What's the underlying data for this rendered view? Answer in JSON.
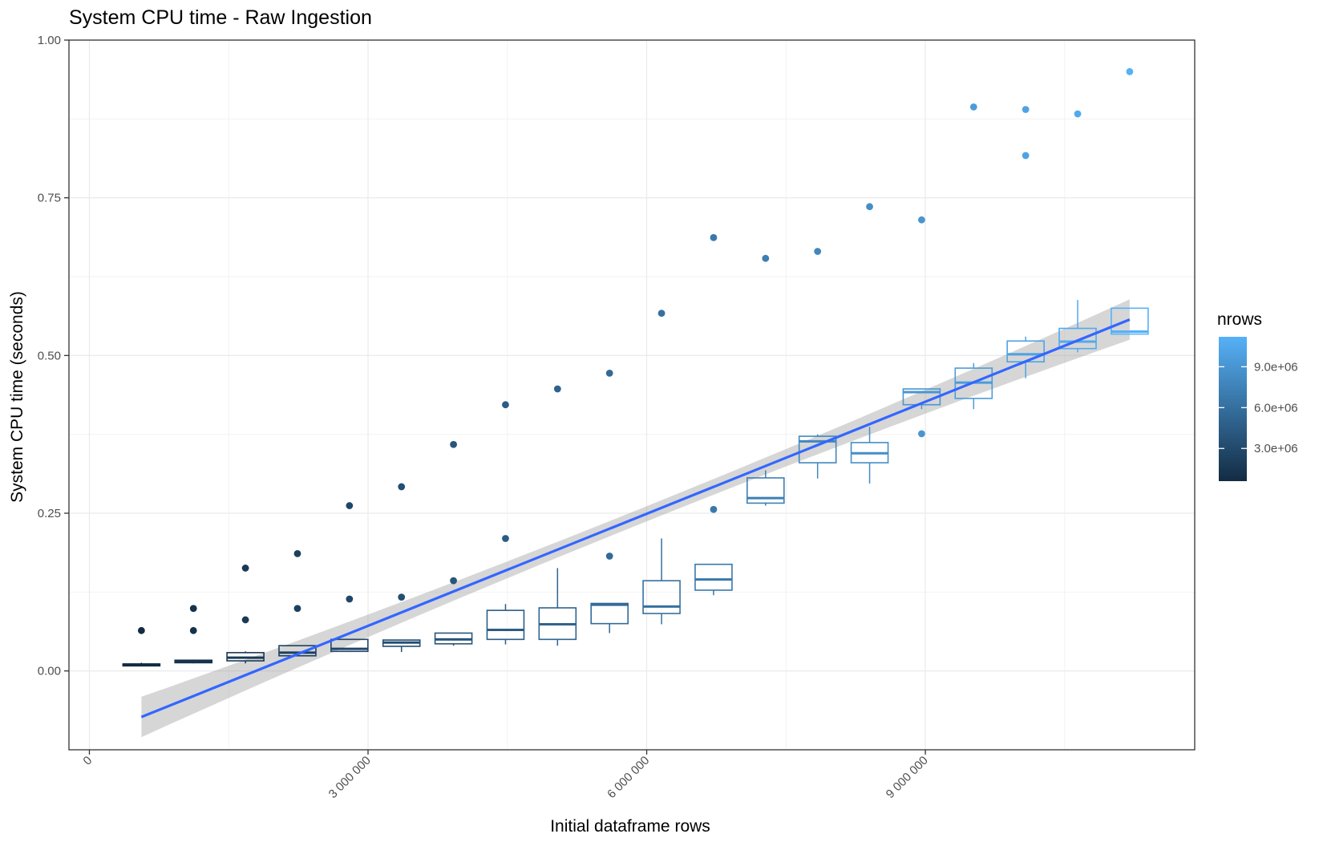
{
  "chart_data": {
    "type": "box",
    "title": "System CPU time - Raw Ingestion",
    "xlabel": "Initial dataframe rows",
    "ylabel": "System CPU time (seconds)",
    "xlim": [
      -220000,
      11900000
    ],
    "ylim": [
      -0.125,
      1.0
    ],
    "x_ticks": [
      0,
      3000000,
      6000000,
      9000000
    ],
    "x_tick_labels": [
      "0",
      "3 000 000",
      "6 000 000",
      "9 000 000"
    ],
    "y_ticks": [
      0.0,
      0.25,
      0.5,
      0.75,
      1.0
    ],
    "y_tick_labels": [
      "0.00",
      "0.25",
      "0.50",
      "0.75",
      "1.00"
    ],
    "grid": true,
    "legend": {
      "title": "nrows",
      "placement": "right",
      "type": "colorbar",
      "range": [
        600000,
        11200000
      ],
      "ticks": [
        3000000,
        6000000,
        9000000
      ],
      "tick_labels": [
        "3.0e+06",
        "6.0e+06",
        "9.0e+06"
      ],
      "color_low": "#132B43",
      "color_high": "#56B1F7"
    },
    "boxes": [
      {
        "x": 560000,
        "min": 0.008,
        "q1": 0.008,
        "median": 0.01,
        "q3": 0.011,
        "max": 0.013,
        "outliers": [
          0.064
        ]
      },
      {
        "x": 1120000,
        "min": 0.012,
        "q1": 0.013,
        "median": 0.015,
        "q3": 0.017,
        "max": 0.018,
        "outliers": [
          0.099,
          0.064
        ]
      },
      {
        "x": 1680000,
        "min": 0.012,
        "q1": 0.016,
        "median": 0.021,
        "q3": 0.029,
        "max": 0.031,
        "outliers": [
          0.163,
          0.081
        ]
      },
      {
        "x": 2240000,
        "min": 0.024,
        "q1": 0.024,
        "median": 0.029,
        "q3": 0.04,
        "max": 0.04,
        "outliers": [
          0.186,
          0.099
        ]
      },
      {
        "x": 2800000,
        "min": 0.03,
        "q1": 0.031,
        "median": 0.035,
        "q3": 0.05,
        "max": 0.05,
        "outliers": [
          0.262,
          0.114
        ]
      },
      {
        "x": 3360000,
        "min": 0.03,
        "q1": 0.039,
        "median": 0.045,
        "q3": 0.049,
        "max": 0.049,
        "outliers": [
          0.292,
          0.117
        ]
      },
      {
        "x": 3920000,
        "min": 0.04,
        "q1": 0.043,
        "median": 0.05,
        "q3": 0.06,
        "max": 0.06,
        "outliers": [
          0.359,
          0.143
        ]
      },
      {
        "x": 4480000,
        "min": 0.042,
        "q1": 0.05,
        "median": 0.065,
        "q3": 0.096,
        "max": 0.106,
        "outliers": [
          0.422,
          0.21
        ]
      },
      {
        "x": 5040000,
        "min": 0.04,
        "q1": 0.05,
        "median": 0.074,
        "q3": 0.1,
        "max": 0.163,
        "outliers": [
          0.447
        ]
      },
      {
        "x": 5600000,
        "min": 0.06,
        "q1": 0.075,
        "median": 0.105,
        "q3": 0.107,
        "max": 0.107,
        "outliers": [
          0.472,
          0.182
        ]
      },
      {
        "x": 6160000,
        "min": 0.074,
        "q1": 0.091,
        "median": 0.102,
        "q3": 0.143,
        "max": 0.21,
        "outliers": [
          0.567
        ]
      },
      {
        "x": 6720000,
        "min": 0.12,
        "q1": 0.128,
        "median": 0.145,
        "q3": 0.169,
        "max": 0.169,
        "outliers": [
          0.687,
          0.256
        ]
      },
      {
        "x": 7280000,
        "min": 0.262,
        "q1": 0.266,
        "median": 0.274,
        "q3": 0.306,
        "max": 0.318,
        "outliers": [
          0.654
        ]
      },
      {
        "x": 7840000,
        "min": 0.305,
        "q1": 0.33,
        "median": 0.364,
        "q3": 0.372,
        "max": 0.375,
        "outliers": [
          0.665
        ]
      },
      {
        "x": 8400000,
        "min": 0.297,
        "q1": 0.33,
        "median": 0.345,
        "q3": 0.362,
        "max": 0.387,
        "outliers": [
          0.736
        ]
      },
      {
        "x": 8960000,
        "min": 0.415,
        "q1": 0.422,
        "median": 0.442,
        "q3": 0.447,
        "max": 0.447,
        "outliers": [
          0.715,
          0.376
        ]
      },
      {
        "x": 9520000,
        "min": 0.415,
        "q1": 0.432,
        "median": 0.457,
        "q3": 0.48,
        "max": 0.488,
        "outliers": [
          0.894
        ]
      },
      {
        "x": 10080000,
        "min": 0.464,
        "q1": 0.49,
        "median": 0.502,
        "q3": 0.523,
        "max": 0.53,
        "outliers": [
          0.89,
          0.817
        ]
      },
      {
        "x": 10640000,
        "min": 0.505,
        "q1": 0.511,
        "median": 0.522,
        "q3": 0.543,
        "max": 0.588,
        "outliers": [
          0.883
        ]
      },
      {
        "x": 11200000,
        "min": 0.534,
        "q1": 0.534,
        "median": 0.538,
        "q3": 0.575,
        "max": 0.575,
        "outliers": [
          0.95
        ]
      }
    ],
    "trend_line": {
      "x_start": 560000,
      "x_end": 11200000,
      "y_start": -0.073,
      "y_end": 0.557,
      "ci_halfwidth_ends": 0.032,
      "ci_halfwidth_mid": 0.012,
      "color": "#3366FF"
    }
  }
}
